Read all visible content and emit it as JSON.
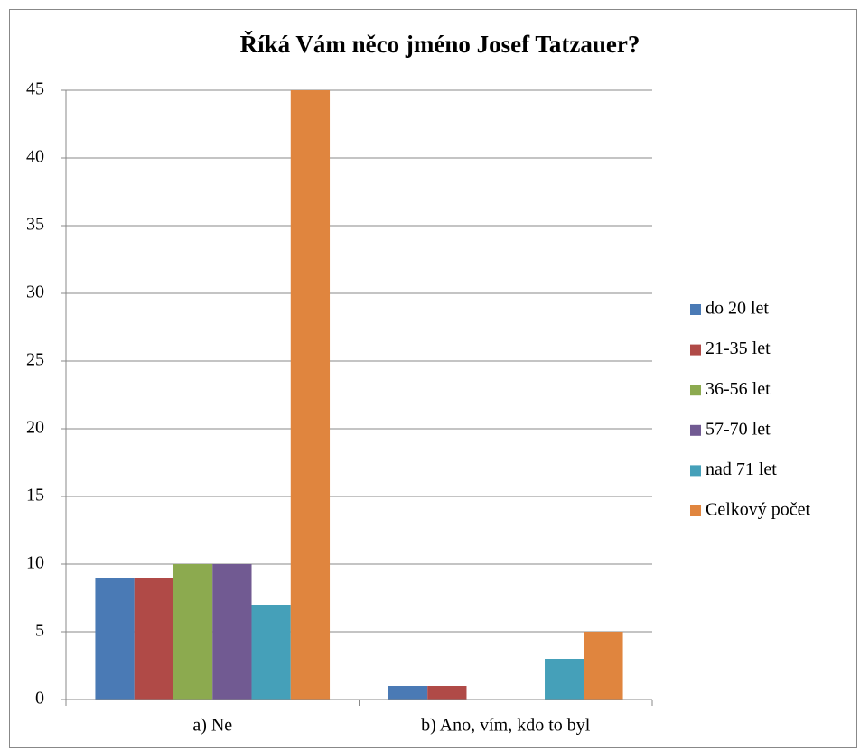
{
  "chart_data": {
    "type": "bar",
    "title": "Říká Vám něco jméno Josef Tatzauer?",
    "categories": [
      "a) Ne",
      "b) Ano, vím, kdo to byl"
    ],
    "series": [
      {
        "name": "do 20 let",
        "color": "#4a7ab5",
        "values": [
          9,
          1
        ]
      },
      {
        "name": "21-35 let",
        "color": "#b04a47",
        "values": [
          9,
          1
        ]
      },
      {
        "name": "36-56 let",
        "color": "#8caa4f",
        "values": [
          10,
          0
        ]
      },
      {
        "name": "57-70 let",
        "color": "#715a92",
        "values": [
          10,
          0
        ]
      },
      {
        "name": "nad 71 let",
        "color": "#45a0b9",
        "values": [
          7,
          3
        ]
      },
      {
        "name": "Celkový počet",
        "color": "#e0853e",
        "values": [
          45,
          5
        ]
      }
    ],
    "ylim": [
      0,
      45
    ],
    "yticks": [
      0,
      5,
      10,
      15,
      20,
      25,
      30,
      35,
      40,
      45
    ],
    "grid": true,
    "legend": "right"
  }
}
